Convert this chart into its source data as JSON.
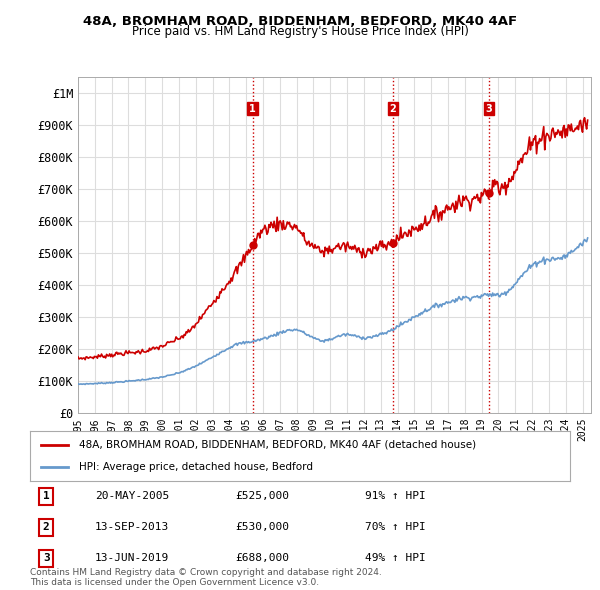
{
  "title": "48A, BROMHAM ROAD, BIDDENHAM, BEDFORD, MK40 4AF",
  "subtitle": "Price paid vs. HM Land Registry's House Price Index (HPI)",
  "ylabel_ticks": [
    "£0",
    "£100K",
    "£200K",
    "£300K",
    "£400K",
    "£500K",
    "£600K",
    "£700K",
    "£800K",
    "£900K",
    "£1M"
  ],
  "ytick_values": [
    0,
    100000,
    200000,
    300000,
    400000,
    500000,
    600000,
    700000,
    800000,
    900000,
    1000000
  ],
  "ylim": [
    0,
    1050000
  ],
  "xlim_start": 1995.0,
  "xlim_end": 2025.5,
  "sale_dates": [
    2005.38,
    2013.71,
    2019.45
  ],
  "sale_prices": [
    525000,
    530000,
    688000
  ],
  "sale_labels": [
    "1",
    "2",
    "3"
  ],
  "vline_color": "#cc0000",
  "vline_style": ":",
  "red_line_color": "#cc0000",
  "blue_line_color": "#6699cc",
  "legend_red_label": "48A, BROMHAM ROAD, BIDDENHAM, BEDFORD, MK40 4AF (detached house)",
  "legend_blue_label": "HPI: Average price, detached house, Bedford",
  "table_entries": [
    {
      "num": "1",
      "date": "20-MAY-2005",
      "price": "£525,000",
      "pct": "91% ↑ HPI"
    },
    {
      "num": "2",
      "date": "13-SEP-2013",
      "price": "£530,000",
      "pct": "70% ↑ HPI"
    },
    {
      "num": "3",
      "date": "13-JUN-2019",
      "price": "£688,000",
      "pct": "49% ↑ HPI"
    }
  ],
  "footer": "Contains HM Land Registry data © Crown copyright and database right 2024.\nThis data is licensed under the Open Government Licence v3.0.",
  "background_color": "#ffffff",
  "grid_color": "#dddddd",
  "xticks": [
    1995,
    1996,
    1997,
    1998,
    1999,
    2000,
    2001,
    2002,
    2003,
    2004,
    2005,
    2006,
    2007,
    2008,
    2009,
    2010,
    2011,
    2012,
    2013,
    2014,
    2015,
    2016,
    2017,
    2018,
    2019,
    2020,
    2021,
    2022,
    2023,
    2024,
    2025
  ]
}
